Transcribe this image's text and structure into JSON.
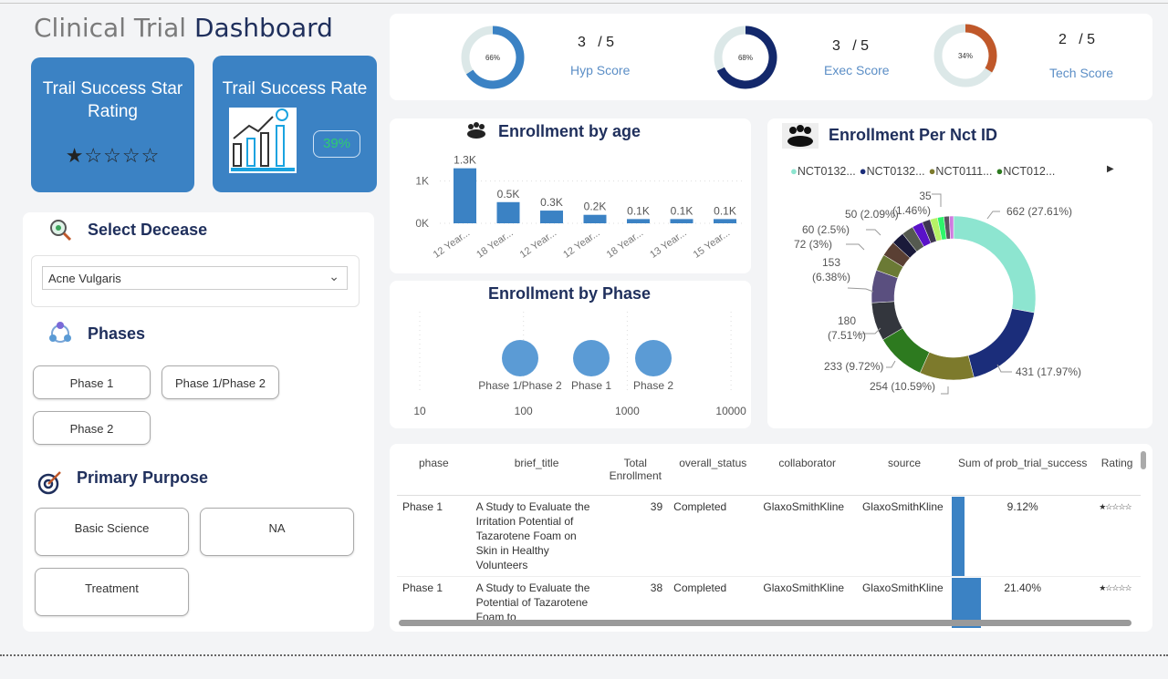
{
  "header": {
    "title_a": "Clinical Trial",
    "title_b": "Dashboard"
  },
  "cards": {
    "star_title": "Trail Success Star Rating",
    "stars": "★☆☆☆☆",
    "star_rating": 1,
    "rate_title": "Trail Success Rate",
    "rate_value": "39%"
  },
  "filters": {
    "disease_label": "Select Decease",
    "disease_value": "Acne Vulgaris",
    "phases_label": "Phases",
    "phases": [
      "Phase 1",
      "Phase 1/Phase 2",
      "Phase 2"
    ],
    "purpose_label": "Primary Purpose",
    "purposes": [
      "Basic Science",
      "NA",
      "Treatment"
    ]
  },
  "scores": [
    {
      "pct": 66,
      "pct_label": "66%",
      "score": "3",
      "max": "/ 5",
      "label": "Hyp Score",
      "color": "#3b82c4"
    },
    {
      "pct": 68,
      "pct_label": "68%",
      "score": "3",
      "max": "/ 5",
      "label": "Exec Score",
      "color": "#13286b"
    },
    {
      "pct": 34,
      "pct_label": "34%",
      "score": "2",
      "max": "/ 5",
      "label": "Tech Score",
      "color": "#c0582a"
    }
  ],
  "chart_data": [
    {
      "type": "bar",
      "title": "Enrollment by age",
      "categories": [
        "12 Year...",
        "18 Year...",
        "12 Year...",
        "12 Year...",
        "18 Year...",
        "13 Year...",
        "15 Year..."
      ],
      "values": [
        1300,
        500,
        300,
        200,
        100,
        100,
        100
      ],
      "data_labels": [
        "1.3K",
        "0.5K",
        "0.3K",
        "0.2K",
        "0.1K",
        "0.1K",
        "0.1K"
      ],
      "yticks": [
        "0K",
        "1K"
      ],
      "ylim": [
        0,
        1400
      ],
      "color": "#3b82c4"
    },
    {
      "type": "scatter",
      "title": "Enrollment by Phase",
      "x_scale": "log",
      "xticks": [
        "10",
        "100",
        "1000",
        "10000"
      ],
      "points": [
        {
          "label": "Phase 1/Phase 2",
          "x": 80
        },
        {
          "label": "Phase 1",
          "x": 330
        },
        {
          "label": "Phase 2",
          "x": 1100
        }
      ],
      "color": "#5b9bd5"
    },
    {
      "type": "pie",
      "title": "Enrollment Per Nct ID",
      "legend": [
        "NCT0132...",
        "NCT0132...",
        "NCT0111...",
        "NCT012..."
      ],
      "legend_position": "top",
      "values": [
        662,
        431,
        254,
        233,
        180,
        153,
        78,
        72,
        60,
        55,
        50,
        38,
        35,
        30,
        25,
        20
      ],
      "labels": [
        "662 (27.61%)",
        "431 (17.97%)",
        "254 (10.59%)",
        "233 (9.72%)",
        "180 (7.51%)",
        "153 (6.38%)",
        "",
        "72 (3%)",
        "60 (2.5%)",
        "",
        "50 (2.09%)",
        "",
        "35 (1.46%)",
        "",
        "",
        ""
      ],
      "colors": [
        "#8de5d0",
        "#1b2d7a",
        "#7d7a2c",
        "#2d7a1f",
        "#33363d",
        "#5a4f7f",
        "#6b7a35",
        "#5a3f33",
        "#1a1a3a",
        "#555a50",
        "#5a12c8",
        "#3d3550",
        "#b6f266",
        "#2ef56b",
        "#5a5560",
        "#d07ae0"
      ]
    }
  ],
  "table": {
    "columns": [
      "phase",
      "brief_title",
      "Total Enrollment",
      "overall_status",
      "collaborator",
      "source",
      "Sum of prob_trial_success",
      "Rating"
    ],
    "rows": [
      {
        "phase": "Phase 1",
        "title": "A Study to Evaluate the Irritation Potential of Tazarotene Foam on Skin in Healthy Volunteers",
        "enroll": "39",
        "status": "Completed",
        "collab": "GlaxoSmithKline",
        "source": "GlaxoSmithKline",
        "prob": "9.12%",
        "prob_val": 9.12,
        "rating": "★☆☆☆☆"
      },
      {
        "phase": "Phase 1",
        "title": "A Study to Evaluate the Potential of Tazarotene Foam to",
        "enroll": "38",
        "status": "Completed",
        "collab": "GlaxoSmithKline",
        "source": "GlaxoSmithKline",
        "prob": "21.40%",
        "prob_val": 21.4,
        "rating": "★☆☆☆☆"
      }
    ]
  }
}
